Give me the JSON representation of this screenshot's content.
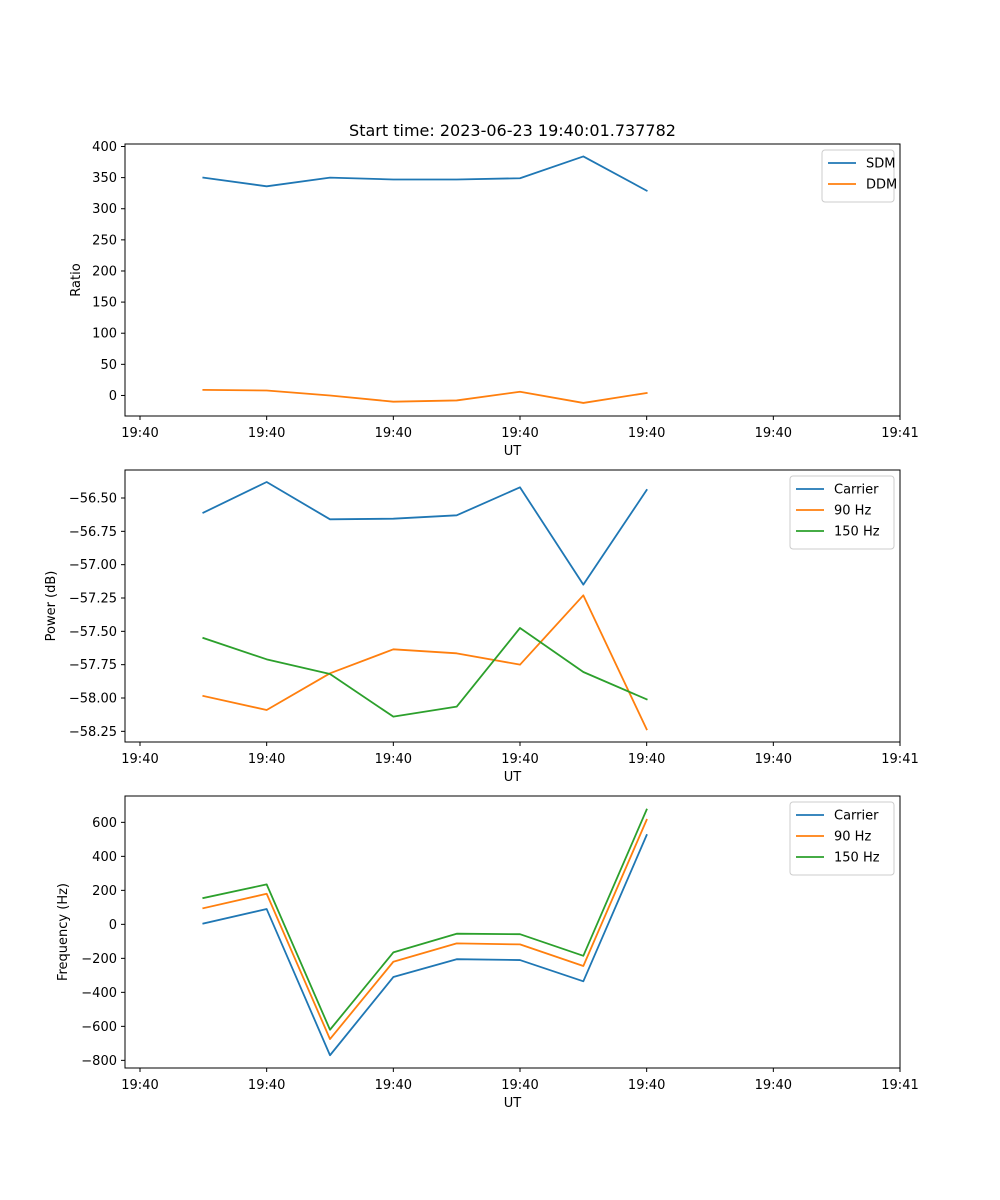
{
  "figure_title": "Start time: 2023-06-23 19:40:01.737782",
  "colors": {
    "blue": "#1f77b4",
    "orange": "#ff7f0e",
    "green": "#2ca02c"
  },
  "chart_data": [
    {
      "type": "line",
      "title": "Start time: 2023-06-23 19:40:01.737782",
      "xlabel": "UT",
      "ylabel": "Ratio",
      "x_tick_labels": [
        "19:40",
        "19:40",
        "19:40",
        "19:40",
        "19:40",
        "19:40",
        "19:41"
      ],
      "xlim": [
        0,
        6
      ],
      "x": [
        0.5,
        1.0,
        1.5,
        2.0,
        2.5,
        3.0,
        3.5,
        4.0
      ],
      "ylim": [
        -33,
        404
      ],
      "yticks": [
        0,
        50,
        100,
        150,
        200,
        250,
        300,
        350,
        400
      ],
      "legend_position": "upper right",
      "series": [
        {
          "name": "SDM",
          "color": "#1f77b4",
          "values": [
            350,
            336,
            350,
            347,
            347,
            349,
            384,
            329
          ]
        },
        {
          "name": "DDM",
          "color": "#ff7f0e",
          "values": [
            9,
            8,
            0,
            -10,
            -8,
            6,
            -12,
            4
          ]
        }
      ]
    },
    {
      "type": "line",
      "title": "",
      "xlabel": "UT",
      "ylabel": "Power (dB)",
      "x_tick_labels": [
        "19:40",
        "19:40",
        "19:40",
        "19:40",
        "19:40",
        "19:40",
        "19:41"
      ],
      "xlim": [
        0,
        6
      ],
      "x": [
        0.5,
        1.0,
        1.5,
        2.0,
        2.5,
        3.0,
        3.5,
        4.0
      ],
      "ylim": [
        -58.33,
        -56.29
      ],
      "yticks": [
        -58.25,
        -58.0,
        -57.75,
        -57.5,
        -57.25,
        -57.0,
        -56.75,
        -56.5
      ],
      "ytick_labels": [
        "−58.25",
        "−58.00",
        "−57.75",
        "−57.50",
        "−57.25",
        "−57.00",
        "−56.75",
        "−56.50"
      ],
      "legend_position": "upper right",
      "series": [
        {
          "name": "Carrier",
          "color": "#1f77b4",
          "values": [
            -56.61,
            -56.38,
            -56.66,
            -56.655,
            -56.63,
            -56.42,
            -57.15,
            -56.44
          ]
        },
        {
          "name": "90 Hz",
          "color": "#ff7f0e",
          "values": [
            -57.985,
            -58.09,
            -57.815,
            -57.635,
            -57.665,
            -57.75,
            -57.23,
            -58.235
          ]
        },
        {
          "name": "150 Hz",
          "color": "#2ca02c",
          "values": [
            -57.55,
            -57.71,
            -57.82,
            -58.14,
            -58.065,
            -57.475,
            -57.805,
            -58.01
          ]
        }
      ]
    },
    {
      "type": "line",
      "title": "",
      "xlabel": "UT",
      "ylabel": "Frequency (Hz)",
      "x_tick_labels": [
        "19:40",
        "19:40",
        "19:40",
        "19:40",
        "19:40",
        "19:40",
        "19:41"
      ],
      "xlim": [
        0,
        6
      ],
      "x": [
        0.5,
        1.0,
        1.5,
        2.0,
        2.5,
        3.0,
        3.5,
        4.0
      ],
      "ylim": [
        -845,
        755
      ],
      "yticks": [
        -800,
        -600,
        -400,
        -200,
        0,
        200,
        400,
        600
      ],
      "ytick_labels": [
        "−800",
        "−600",
        "−400",
        "−200",
        "0",
        "200",
        "400",
        "600"
      ],
      "legend_position": "upper right",
      "series": [
        {
          "name": "Carrier",
          "color": "#1f77b4",
          "values": [
            5,
            90,
            -770,
            -310,
            -205,
            -210,
            -335,
            525
          ]
        },
        {
          "name": "90 Hz",
          "color": "#ff7f0e",
          "values": [
            95,
            180,
            -675,
            -220,
            -112,
            -118,
            -245,
            615
          ]
        },
        {
          "name": "150 Hz",
          "color": "#2ca02c",
          "values": [
            155,
            235,
            -620,
            -165,
            -55,
            -58,
            -185,
            675
          ]
        }
      ]
    }
  ]
}
